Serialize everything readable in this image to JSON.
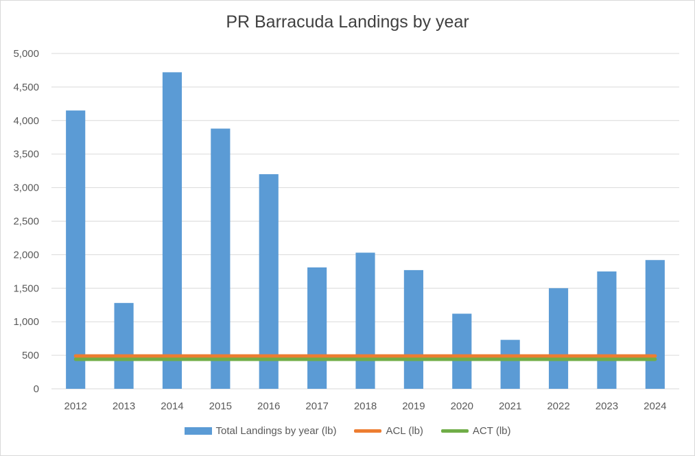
{
  "chart_data": {
    "type": "bar",
    "title": "PR Barracuda Landings by year",
    "categories": [
      "2012",
      "2013",
      "2014",
      "2015",
      "2016",
      "2017",
      "2018",
      "2019",
      "2020",
      "2021",
      "2022",
      "2023",
      "2024"
    ],
    "series": [
      {
        "name": "Total Landings by year (lb)",
        "type": "bar",
        "color": "#5b9bd5",
        "values": [
          4150,
          1280,
          4720,
          3880,
          3200,
          1810,
          2030,
          1770,
          1120,
          730,
          1500,
          1750,
          1920
        ]
      },
      {
        "name": "ACL (lb)",
        "type": "line",
        "color": "#ed7d31",
        "values": [
          490,
          490,
          490,
          490,
          490,
          490,
          490,
          490,
          490,
          490,
          490,
          490,
          490
        ]
      },
      {
        "name": "ACT (lb)",
        "type": "line",
        "color": "#70ad47",
        "values": [
          440,
          440,
          440,
          440,
          440,
          440,
          440,
          440,
          440,
          440,
          440,
          440,
          440
        ]
      }
    ],
    "yticks": [
      "0",
      "500",
      "1,000",
      "1,500",
      "2,000",
      "2,500",
      "3,000",
      "3,500",
      "4,000",
      "4,500",
      "5,000"
    ],
    "ylim": [
      0,
      5000
    ],
    "grid": true,
    "legend_position": "bottom"
  }
}
